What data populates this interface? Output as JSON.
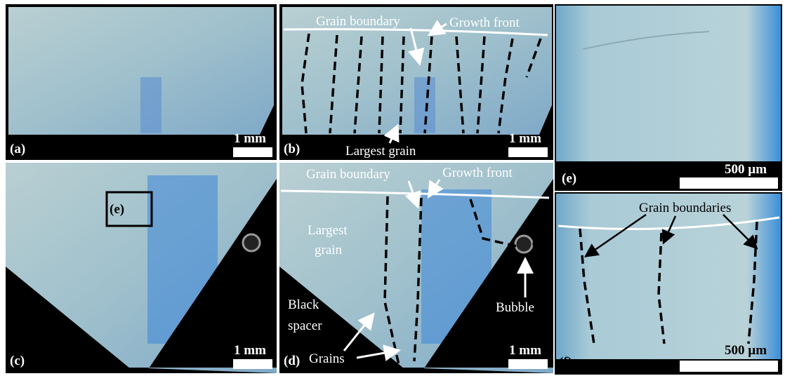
{
  "panels": [
    {
      "label": "(a)",
      "scale": "1 mm"
    },
    {
      "label": "(b)",
      "scale": "1 mm",
      "annotations": [
        "Grain boundary",
        "Growth front",
        "Largest grain"
      ]
    },
    {
      "label": "(c)",
      "scale": "1 mm",
      "annotations": [
        "(e)"
      ]
    },
    {
      "label": "(d)",
      "scale": "1 mm",
      "annotations": [
        "Grain boundary",
        "Growth front",
        {
          "lines": [
            "Largest",
            "grain"
          ]
        },
        {
          "lines": [
            "Black",
            "spacer"
          ]
        },
        "Grains",
        "Bubble"
      ]
    },
    {
      "label": "(e)",
      "scale": "500 µm"
    },
    {
      "label": "(f)",
      "scale": "500 µm",
      "annotations": [
        "Grain boundaries"
      ]
    }
  ]
}
